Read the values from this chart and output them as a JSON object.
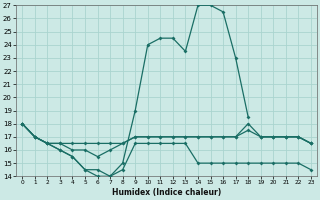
{
  "xlabel": "Humidex (Indice chaleur)",
  "bg_color": "#cce9e5",
  "grid_color": "#aad4cf",
  "line_color": "#1a6e65",
  "ylim": [
    14,
    27
  ],
  "xlim": [
    -0.5,
    23.5
  ],
  "yticks": [
    14,
    15,
    16,
    17,
    18,
    19,
    20,
    21,
    22,
    23,
    24,
    25,
    26,
    27
  ],
  "xticks": [
    0,
    1,
    2,
    3,
    4,
    5,
    6,
    7,
    8,
    9,
    10,
    11,
    12,
    13,
    14,
    15,
    16,
    17,
    18,
    19,
    20,
    21,
    22,
    23
  ],
  "line_big": {
    "x": [
      0,
      1,
      2,
      3,
      4,
      5,
      6,
      7,
      8,
      9,
      10,
      11,
      12,
      13,
      14,
      15,
      16,
      17,
      18
    ],
    "y": [
      18,
      17,
      16.5,
      16,
      15.5,
      14.5,
      14,
      14,
      15,
      19,
      24,
      24.5,
      24.5,
      23.5,
      27,
      27,
      26.5,
      23,
      18.5
    ]
  },
  "line_top": {
    "x": [
      0,
      1,
      2,
      3,
      4,
      5,
      6,
      7,
      8,
      9,
      10,
      11,
      12,
      13,
      14,
      15,
      16,
      17,
      18,
      19,
      20,
      21,
      22,
      23
    ],
    "y": [
      18,
      17,
      16.5,
      16.5,
      16.5,
      16.5,
      16.5,
      16.5,
      16.5,
      17,
      17,
      17,
      17,
      17,
      17,
      17,
      17,
      17,
      18,
      17,
      17,
      17,
      17,
      16.5
    ]
  },
  "line_mid": {
    "x": [
      0,
      1,
      2,
      3,
      4,
      5,
      6,
      7,
      8,
      9,
      10,
      11,
      12,
      13,
      14,
      15,
      16,
      17,
      18,
      19,
      20,
      21,
      22,
      23
    ],
    "y": [
      18,
      17,
      16.5,
      16.5,
      16,
      16,
      15.5,
      16,
      16.5,
      17,
      17,
      17,
      17,
      17,
      17,
      17,
      17,
      17,
      17.5,
      17,
      17,
      17,
      17,
      16.5
    ]
  },
  "line_low": {
    "x": [
      0,
      1,
      2,
      3,
      4,
      5,
      6,
      7,
      8,
      9,
      10,
      11,
      12,
      13,
      14,
      15,
      16,
      17,
      18,
      19,
      20,
      21,
      22,
      23
    ],
    "y": [
      18,
      17,
      16.5,
      16,
      15.5,
      14.5,
      14.5,
      14,
      14.5,
      16.5,
      16.5,
      16.5,
      16.5,
      16.5,
      15,
      15,
      15,
      15,
      15,
      15,
      15,
      15,
      15,
      14.5
    ]
  },
  "line_post": {
    "x": [
      19,
      20,
      21,
      22,
      23
    ],
    "y": [
      17,
      17,
      17,
      17,
      16.5
    ]
  }
}
